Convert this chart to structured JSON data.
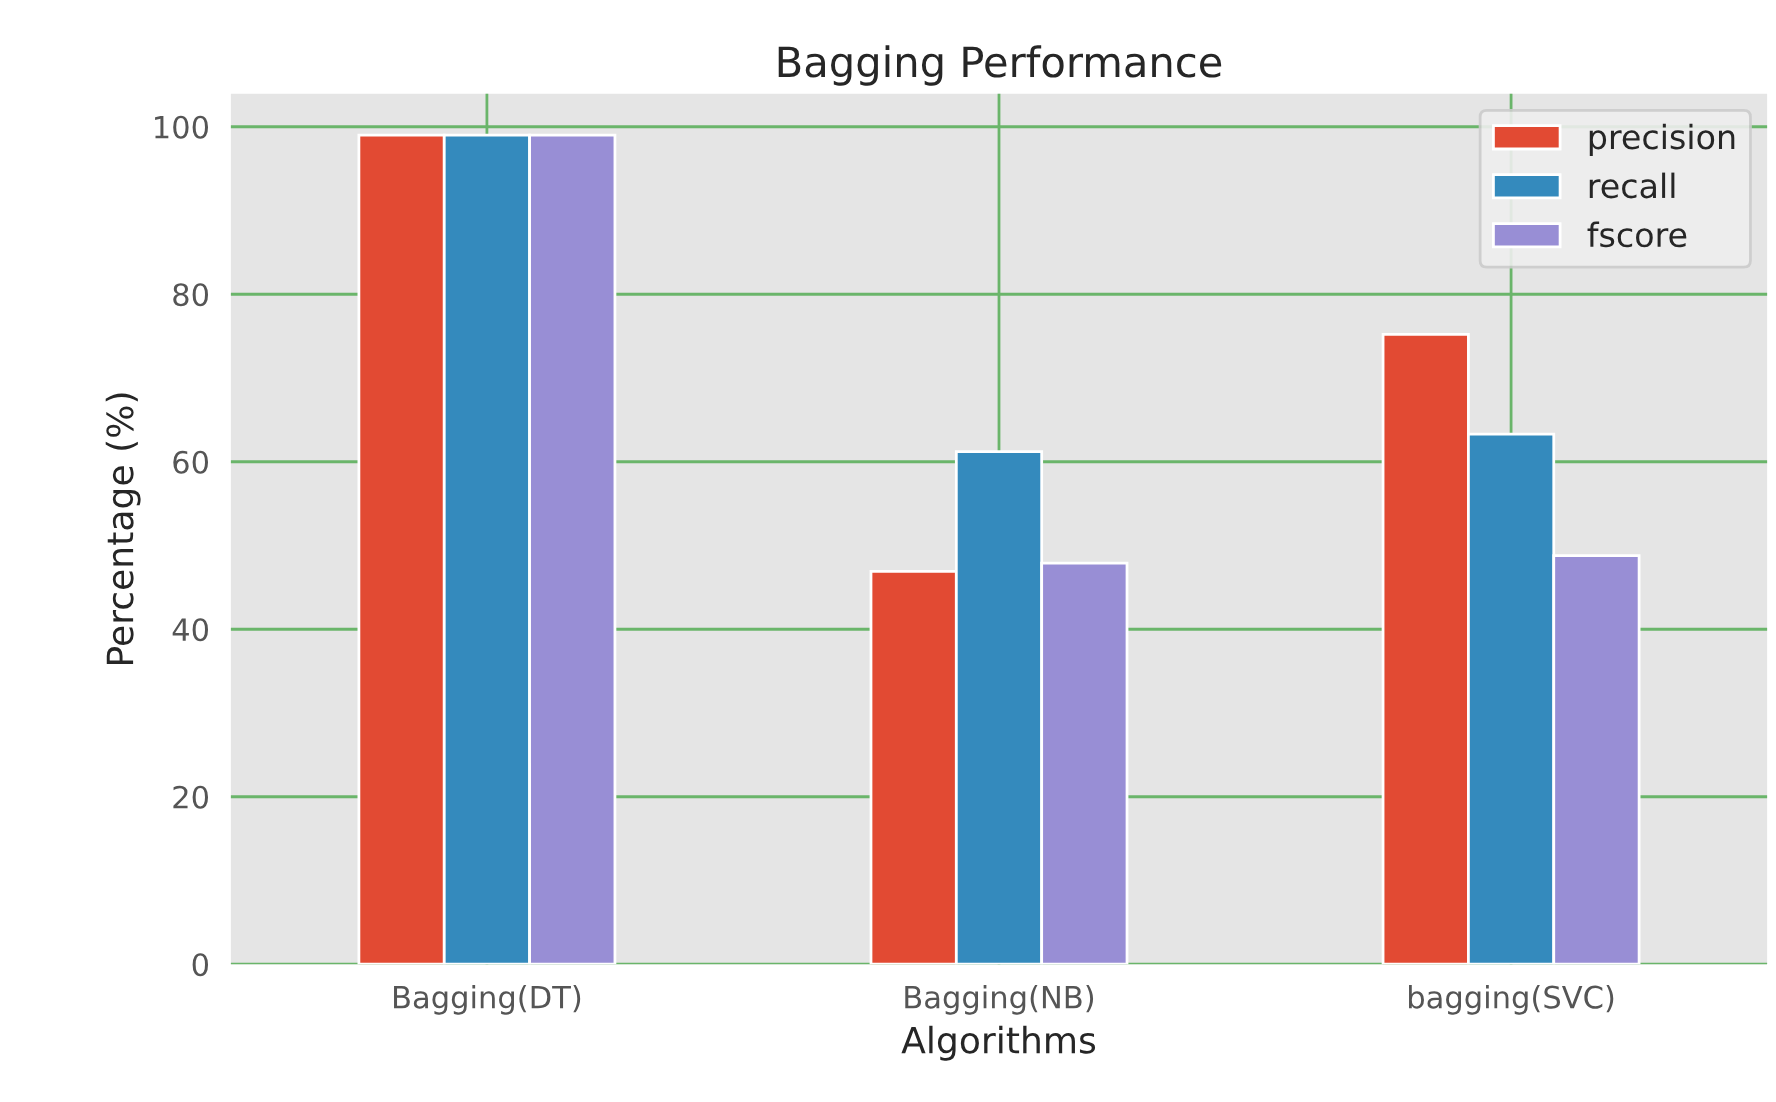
{
  "chart_data": {
    "type": "bar",
    "title": "Bagging Performance",
    "xlabel": "Algorithms",
    "ylabel": "Percentage (%)",
    "categories": [
      "Bagging(DT)",
      "Bagging(NB)",
      "bagging(SVC)"
    ],
    "series": [
      {
        "name": "precision",
        "color": "#e24a33",
        "values": [
          99,
          46.9,
          75.2
        ]
      },
      {
        "name": "recall",
        "color": "#348abd",
        "values": [
          99,
          61.2,
          63.3
        ]
      },
      {
        "name": "fscore",
        "color": "#988ed5",
        "values": [
          99,
          47.9,
          48.8
        ]
      }
    ],
    "ylim": [
      0,
      103.95
    ],
    "yticks": [
      0,
      20,
      40,
      60,
      80,
      100
    ],
    "grid": true,
    "legend": "top right"
  }
}
